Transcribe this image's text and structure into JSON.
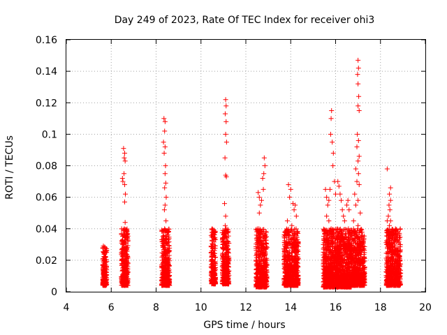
{
  "chart_data": {
    "type": "scatter",
    "title": "Day 249 of 2023, Rate Of TEC Index for receiver ohi3",
    "xlabel": "GPS time / hours",
    "ylabel": "ROTI / TECUs",
    "xlim": [
      4,
      20
    ],
    "ylim": [
      0,
      0.16
    ],
    "xticks": [
      "4",
      "6",
      "8",
      "10",
      "12",
      "14",
      "16",
      "18",
      "20"
    ],
    "yticks": [
      "0",
      "0.02",
      "0.04",
      "0.06",
      "0.08",
      "0.1",
      "0.12",
      "0.14",
      "0.16"
    ],
    "grid": true,
    "marker": "+",
    "color": "#ff0000",
    "clusters": [
      {
        "x": [
          5.62,
          5.8
        ],
        "y": [
          0.004,
          0.029
        ]
      },
      {
        "x": [
          6.45,
          6.75
        ],
        "y": [
          0.004,
          0.092
        ]
      },
      {
        "x": [
          8.25,
          8.6
        ],
        "y": [
          0.004,
          0.111
        ]
      },
      {
        "x": [
          10.45,
          10.65
        ],
        "y": [
          0.005,
          0.04
        ]
      },
      {
        "x": [
          10.95,
          11.25
        ],
        "y": [
          0.005,
          0.123
        ]
      },
      {
        "x": [
          12.45,
          12.95
        ],
        "y": [
          0.003,
          0.085
        ]
      },
      {
        "x": [
          13.7,
          14.35
        ],
        "y": [
          0.004,
          0.068
        ]
      },
      {
        "x": [
          15.45,
          16.1
        ],
        "y": [
          0.003,
          0.116
        ]
      },
      {
        "x": [
          16.05,
          16.7
        ],
        "y": [
          0.003,
          0.07
        ]
      },
      {
        "x": [
          16.7,
          17.3
        ],
        "y": [
          0.004,
          0.148
        ]
      },
      {
        "x": [
          18.25,
          18.9
        ],
        "y": [
          0.004,
          0.079
        ]
      }
    ],
    "points": [
      [
        5.65,
        0.029
      ],
      [
        5.7,
        0.024
      ],
      [
        5.68,
        0.02
      ],
      [
        5.72,
        0.017
      ],
      [
        5.66,
        0.013
      ],
      [
        5.7,
        0.01
      ],
      [
        5.68,
        0.007
      ],
      [
        5.72,
        0.005
      ],
      [
        5.75,
        0.022
      ],
      [
        5.64,
        0.015
      ],
      [
        6.55,
        0.091
      ],
      [
        6.6,
        0.088
      ],
      [
        6.58,
        0.085
      ],
      [
        6.62,
        0.083
      ],
      [
        6.5,
        0.072
      ],
      [
        6.57,
        0.075
      ],
      [
        6.6,
        0.068
      ],
      [
        6.52,
        0.07
      ],
      [
        6.63,
        0.062
      ],
      [
        6.6,
        0.057
      ],
      [
        6.62,
        0.044
      ],
      [
        6.58,
        0.04
      ],
      [
        6.55,
        0.036
      ],
      [
        6.6,
        0.033
      ],
      [
        6.57,
        0.028
      ],
      [
        6.62,
        0.025
      ],
      [
        6.5,
        0.02
      ],
      [
        6.55,
        0.018
      ],
      [
        6.6,
        0.014
      ],
      [
        6.65,
        0.012
      ],
      [
        6.5,
        0.01
      ],
      [
        6.58,
        0.008
      ],
      [
        6.62,
        0.006
      ],
      [
        6.52,
        0.005
      ],
      [
        6.7,
        0.011
      ],
      [
        6.68,
        0.013
      ],
      [
        8.35,
        0.11
      ],
      [
        8.4,
        0.108
      ],
      [
        8.38,
        0.102
      ],
      [
        8.33,
        0.095
      ],
      [
        8.4,
        0.092
      ],
      [
        8.36,
        0.088
      ],
      [
        8.42,
        0.08
      ],
      [
        8.4,
        0.075
      ],
      [
        8.43,
        0.069
      ],
      [
        8.38,
        0.066
      ],
      [
        8.45,
        0.06
      ],
      [
        8.4,
        0.055
      ],
      [
        8.37,
        0.052
      ],
      [
        8.44,
        0.045
      ],
      [
        8.38,
        0.04
      ],
      [
        8.33,
        0.035
      ],
      [
        8.45,
        0.033
      ],
      [
        8.4,
        0.028
      ],
      [
        8.35,
        0.022
      ],
      [
        8.3,
        0.02
      ],
      [
        8.4,
        0.018
      ],
      [
        8.45,
        0.015
      ],
      [
        8.35,
        0.012
      ],
      [
        8.42,
        0.01
      ],
      [
        8.38,
        0.008
      ],
      [
        8.3,
        0.006
      ],
      [
        8.46,
        0.005
      ],
      [
        8.5,
        0.009
      ],
      [
        10.5,
        0.04
      ],
      [
        10.55,
        0.038
      ],
      [
        10.52,
        0.03
      ],
      [
        10.55,
        0.024
      ],
      [
        10.5,
        0.02
      ],
      [
        10.55,
        0.016
      ],
      [
        10.53,
        0.012
      ],
      [
        10.57,
        0.009
      ],
      [
        10.5,
        0.006
      ],
      [
        11.1,
        0.122
      ],
      [
        11.12,
        0.118
      ],
      [
        11.08,
        0.113
      ],
      [
        11.12,
        0.108
      ],
      [
        11.1,
        0.1
      ],
      [
        11.14,
        0.095
      ],
      [
        11.07,
        0.085
      ],
      [
        11.1,
        0.074
      ],
      [
        11.13,
        0.073
      ],
      [
        11.05,
        0.056
      ],
      [
        11.1,
        0.048
      ],
      [
        11.08,
        0.042
      ],
      [
        11.12,
        0.04
      ],
      [
        11.1,
        0.035
      ],
      [
        11.06,
        0.03
      ],
      [
        11.14,
        0.025
      ],
      [
        11.1,
        0.02
      ],
      [
        11.04,
        0.018
      ],
      [
        11.12,
        0.015
      ],
      [
        11.09,
        0.012
      ],
      [
        11.15,
        0.01
      ],
      [
        11.06,
        0.008
      ],
      [
        11.12,
        0.007
      ],
      [
        12.55,
        0.063
      ],
      [
        12.6,
        0.06
      ],
      [
        12.65,
        0.055
      ],
      [
        12.6,
        0.05
      ],
      [
        12.7,
        0.058
      ],
      [
        12.75,
        0.072
      ],
      [
        12.8,
        0.075
      ],
      [
        12.82,
        0.085
      ],
      [
        12.85,
        0.08
      ],
      [
        12.78,
        0.065
      ],
      [
        12.6,
        0.038
      ],
      [
        12.55,
        0.032
      ],
      [
        12.7,
        0.03
      ],
      [
        12.6,
        0.027
      ],
      [
        12.8,
        0.02
      ],
      [
        12.6,
        0.018
      ],
      [
        12.7,
        0.015
      ],
      [
        12.55,
        0.012
      ],
      [
        12.75,
        0.01
      ],
      [
        12.6,
        0.008
      ],
      [
        12.65,
        0.005
      ],
      [
        12.8,
        0.006
      ],
      [
        12.5,
        0.025
      ],
      [
        12.9,
        0.012
      ],
      [
        12.85,
        0.035
      ],
      [
        13.9,
        0.068
      ],
      [
        14.0,
        0.065
      ],
      [
        13.95,
        0.06
      ],
      [
        14.1,
        0.056
      ],
      [
        14.15,
        0.052
      ],
      [
        14.2,
        0.055
      ],
      [
        14.25,
        0.048
      ],
      [
        13.85,
        0.045
      ],
      [
        14.05,
        0.042
      ],
      [
        13.9,
        0.038
      ],
      [
        14.0,
        0.034
      ],
      [
        14.1,
        0.03
      ],
      [
        13.8,
        0.028
      ],
      [
        14.2,
        0.025
      ],
      [
        13.95,
        0.022
      ],
      [
        14.1,
        0.02
      ],
      [
        13.85,
        0.018
      ],
      [
        14.0,
        0.015
      ],
      [
        14.15,
        0.012
      ],
      [
        13.9,
        0.01
      ],
      [
        14.05,
        0.008
      ],
      [
        14.25,
        0.006
      ],
      [
        13.8,
        0.005
      ],
      [
        15.55,
        0.065
      ],
      [
        15.6,
        0.06
      ],
      [
        15.65,
        0.055
      ],
      [
        15.7,
        0.058
      ],
      [
        15.75,
        0.065
      ],
      [
        15.78,
        0.1
      ],
      [
        15.8,
        0.11
      ],
      [
        15.82,
        0.115
      ],
      [
        15.85,
        0.095
      ],
      [
        15.9,
        0.088
      ],
      [
        15.88,
        0.08
      ],
      [
        15.95,
        0.07
      ],
      [
        16.0,
        0.062
      ],
      [
        15.6,
        0.048
      ],
      [
        15.7,
        0.045
      ],
      [
        15.8,
        0.04
      ],
      [
        15.9,
        0.036
      ],
      [
        15.55,
        0.032
      ],
      [
        15.65,
        0.028
      ],
      [
        15.75,
        0.025
      ],
      [
        15.85,
        0.022
      ],
      [
        15.95,
        0.02
      ],
      [
        15.6,
        0.018
      ],
      [
        15.7,
        0.016
      ],
      [
        15.8,
        0.014
      ],
      [
        15.9,
        0.012
      ],
      [
        16.0,
        0.01
      ],
      [
        15.65,
        0.008
      ],
      [
        15.75,
        0.006
      ],
      [
        15.85,
        0.005
      ],
      [
        16.1,
        0.07
      ],
      [
        16.15,
        0.067
      ],
      [
        16.2,
        0.062
      ],
      [
        16.25,
        0.058
      ],
      [
        16.3,
        0.052
      ],
      [
        16.35,
        0.048
      ],
      [
        16.4,
        0.045
      ],
      [
        16.5,
        0.055
      ],
      [
        16.55,
        0.058
      ],
      [
        16.6,
        0.052
      ],
      [
        16.2,
        0.038
      ],
      [
        16.3,
        0.034
      ],
      [
        16.4,
        0.03
      ],
      [
        16.5,
        0.028
      ],
      [
        16.15,
        0.025
      ],
      [
        16.25,
        0.022
      ],
      [
        16.35,
        0.02
      ],
      [
        16.45,
        0.018
      ],
      [
        16.55,
        0.015
      ],
      [
        16.2,
        0.012
      ],
      [
        16.3,
        0.01
      ],
      [
        16.4,
        0.008
      ],
      [
        16.5,
        0.006
      ],
      [
        16.6,
        0.005
      ],
      [
        17.0,
        0.147
      ],
      [
        17.02,
        0.142
      ],
      [
        16.98,
        0.138
      ],
      [
        17.0,
        0.132
      ],
      [
        17.03,
        0.124
      ],
      [
        17.0,
        0.118
      ],
      [
        17.05,
        0.115
      ],
      [
        16.97,
        0.1
      ],
      [
        17.02,
        0.096
      ],
      [
        16.95,
        0.092
      ],
      [
        17.05,
        0.086
      ],
      [
        17.0,
        0.083
      ],
      [
        16.9,
        0.078
      ],
      [
        17.02,
        0.075
      ],
      [
        16.95,
        0.07
      ],
      [
        17.05,
        0.068
      ],
      [
        16.85,
        0.062
      ],
      [
        17.0,
        0.058
      ],
      [
        16.9,
        0.055
      ],
      [
        17.1,
        0.05
      ],
      [
        16.8,
        0.045
      ],
      [
        17.0,
        0.042
      ],
      [
        16.88,
        0.038
      ],
      [
        17.1,
        0.035
      ],
      [
        16.8,
        0.032
      ],
      [
        16.95,
        0.028
      ],
      [
        17.15,
        0.025
      ],
      [
        16.85,
        0.022
      ],
      [
        17.05,
        0.02
      ],
      [
        16.9,
        0.018
      ],
      [
        17.1,
        0.015
      ],
      [
        16.8,
        0.012
      ],
      [
        17.0,
        0.01
      ],
      [
        16.9,
        0.008
      ],
      [
        17.05,
        0.006
      ],
      [
        16.95,
        0.004
      ],
      [
        18.3,
        0.078
      ],
      [
        18.45,
        0.066
      ],
      [
        18.4,
        0.062
      ],
      [
        18.45,
        0.058
      ],
      [
        18.38,
        0.055
      ],
      [
        18.42,
        0.052
      ],
      [
        18.35,
        0.048
      ],
      [
        18.45,
        0.045
      ],
      [
        18.4,
        0.042
      ],
      [
        18.3,
        0.045
      ],
      [
        18.5,
        0.038
      ],
      [
        18.55,
        0.035
      ],
      [
        18.65,
        0.033
      ],
      [
        18.4,
        0.03
      ],
      [
        18.5,
        0.028
      ],
      [
        18.6,
        0.025
      ],
      [
        18.35,
        0.022
      ],
      [
        18.45,
        0.02
      ],
      [
        18.55,
        0.018
      ],
      [
        18.65,
        0.015
      ],
      [
        18.4,
        0.012
      ],
      [
        18.5,
        0.01
      ],
      [
        18.6,
        0.008
      ],
      [
        18.45,
        0.006
      ],
      [
        18.55,
        0.005
      ],
      [
        18.8,
        0.012
      ],
      [
        18.75,
        0.02
      ]
    ]
  }
}
